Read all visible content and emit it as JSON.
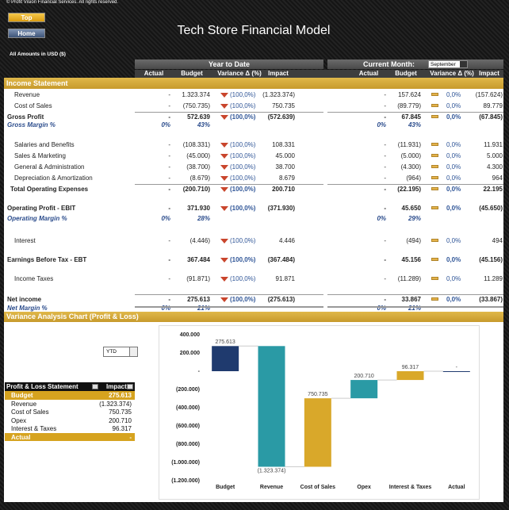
{
  "header": {
    "copyright": "© Profit Vision Financial Services. All rights reserved.",
    "buttons": [
      "Top",
      "Home"
    ],
    "title": "Tech Store Financial Model",
    "amounts_note": "All Amounts in  USD ($)"
  },
  "table": {
    "groups": [
      "Year to Date",
      "Current Month:"
    ],
    "month": "September",
    "columns": [
      "Actual",
      "Budget",
      "Variance Δ  (%)",
      "Impact"
    ],
    "section": "Income Statement",
    "rows": [
      [
        "Revenue",
        "-",
        "1.323.374",
        "(100,0%)",
        "(1.323.374)",
        "-",
        "157.624",
        "0,0%",
        "(157.624)"
      ],
      [
        "Cost of Sales",
        "-",
        "(750.735)",
        "(100,0%)",
        "750.735",
        "-",
        "(89.779)",
        "0,0%",
        "89.779"
      ],
      [
        "Gross Profit",
        "-",
        "572.639",
        "(100,0%)",
        "(572.639)",
        "-",
        "67.845",
        "0,0%",
        "(67.845)"
      ],
      [
        "Gross Margin %",
        "0%",
        "43%",
        "0%",
        "43%"
      ],
      [
        "Salaries and Benefits",
        "-",
        "(108.331)",
        "(100,0%)",
        "108.331",
        "-",
        "(11.931)",
        "0,0%",
        "11.931"
      ],
      [
        "Sales & Marketing",
        "-",
        "(45.000)",
        "(100,0%)",
        "45.000",
        "-",
        "(5.000)",
        "0,0%",
        "5.000"
      ],
      [
        "General & Administration",
        "-",
        "(38.700)",
        "(100,0%)",
        "38.700",
        "-",
        "(4.300)",
        "0,0%",
        "4.300"
      ],
      [
        "Depreciation & Amortization",
        "-",
        "(8.679)",
        "(100,0%)",
        "8.679",
        "-",
        "(964)",
        "0,0%",
        "964"
      ],
      [
        "Total Operating Expenses",
        "-",
        "(200.710)",
        "(100,0%)",
        "200.710",
        "-",
        "(22.195)",
        "0,0%",
        "22.195"
      ],
      [
        "Operating Profit - EBIT",
        "-",
        "371.930",
        "(100,0%)",
        "(371.930)",
        "-",
        "45.650",
        "0,0%",
        "(45.650)"
      ],
      [
        "Operating Margin %",
        "0%",
        "28%",
        "0%",
        "29%"
      ],
      [
        "Interest",
        "-",
        "(4.446)",
        "(100,0%)",
        "4.446",
        "-",
        "(494)",
        "0,0%",
        "494"
      ],
      [
        "Earnings Before Tax - EBT",
        "-",
        "367.484",
        "(100,0%)",
        "(367.484)",
        "-",
        "45.156",
        "0,0%",
        "(45.156)"
      ],
      [
        "Income Taxes",
        "-",
        "(91.871)",
        "(100,0%)",
        "91.871",
        "-",
        "(11.289)",
        "0,0%",
        "11.289"
      ],
      [
        "Net income",
        "-",
        "275.613",
        "(100,0%)",
        "(275.613)",
        "-",
        "33.867",
        "0,0%",
        "(33.867)"
      ],
      [
        "Net Margin %",
        "0%",
        "21%",
        "0%",
        "21%"
      ]
    ]
  },
  "lower": {
    "section": "Variance Analysis Chart (Profit & Loss)",
    "filter": "YTD",
    "pl_table": {
      "headers": [
        "Profit & Loss Statement",
        "Impact"
      ],
      "rows": [
        [
          "Budget",
          "275.613"
        ],
        [
          "Revenue",
          "(1.323.374)"
        ],
        [
          "Cost of Sales",
          "750.735"
        ],
        [
          "Opex",
          "200.710"
        ],
        [
          "Interest & Taxes",
          "96.317"
        ],
        [
          "Actual",
          "-"
        ]
      ]
    }
  },
  "chart_data": {
    "type": "waterfall",
    "categories": [
      "Budget",
      "Revenue",
      "Cost of Sales",
      "Opex",
      "Interest & Taxes",
      "Actual"
    ],
    "values": [
      275613,
      -1323374,
      750735,
      200710,
      96317,
      0
    ],
    "value_labels": [
      "275.613",
      "(1.323.374)",
      "750.735",
      "200.710",
      "96.317",
      "-"
    ],
    "colors": [
      "#1f3a6e",
      "#2a9aa5",
      "#d9a82a",
      "#2a9aa5",
      "#d9a82a",
      "#1f3a6e"
    ],
    "ylim": [
      -1200000,
      400000
    ],
    "yticks": [
      {
        "value": 400000,
        "label": "400.000"
      },
      {
        "value": 200000,
        "label": "200.000"
      },
      {
        "value": 0,
        "label": "-"
      },
      {
        "value": -200000,
        "label": "(200.000)"
      },
      {
        "value": -400000,
        "label": "(400.000)"
      },
      {
        "value": -600000,
        "label": "(600.000)"
      },
      {
        "value": -800000,
        "label": "(800.000)"
      },
      {
        "value": -1000000,
        "label": "(1.000.000)"
      },
      {
        "value": -1200000,
        "label": "(1.200.000)"
      }
    ]
  }
}
